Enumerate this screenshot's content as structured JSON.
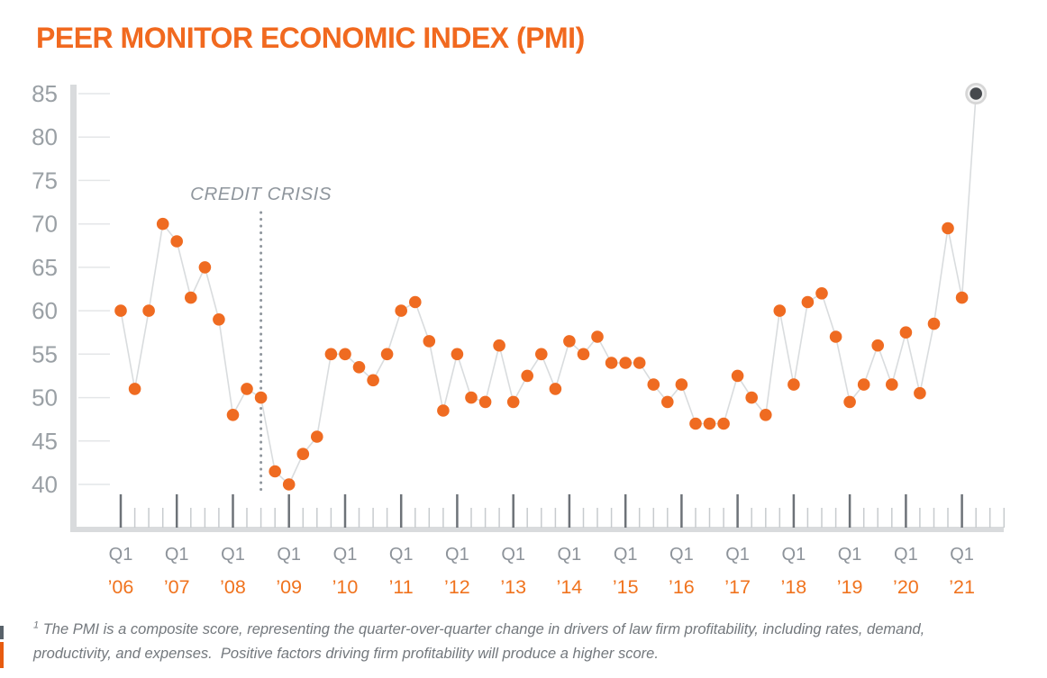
{
  "title": "PEER MONITOR ECONOMIC INDEX (PMI)",
  "footnote": {
    "sup": "1",
    "line1": " The PMI is a composite score, representing the quarter-over-quarter change in drivers of law firm profitability, including rates, demand,",
    "line2": "productivity, and expenses.  Positive factors driving firm profitability will produce a higher score."
  },
  "colors": {
    "accent_orange": "#F1691F",
    "year_label_orange": "#F0731E",
    "point_orange": "#EF6B21",
    "line_gray": "#D9DCDE",
    "grid_stub_gray": "#E4E6E8",
    "axis_band_gray": "#D9DBDD",
    "tick_major_gray": "#6D7278",
    "tick_minor_gray": "#C7CBCE",
    "axis_label_gray": "#9AA0A5",
    "q1_label_gray": "#8D939A",
    "annotation_gray": "#8F969D",
    "footnote_gray": "#73787D",
    "highlight_dot_dark": "#46494D",
    "highlight_halo_gray": "#D6D6D6",
    "highlight_halo_inner": "#F2F2F2"
  },
  "chart_data": {
    "type": "line",
    "title": "PEER MONITOR ECONOMIC INDEX (PMI)",
    "series_name": "PMI",
    "frequency": "quarterly",
    "x_tick_label": "Q1",
    "ylim": [
      40,
      85
    ],
    "y_ticks": [
      85,
      80,
      75,
      70,
      65,
      60,
      55,
      50,
      45,
      40
    ],
    "grid": "short-y-stubs-near-axis",
    "legend": "none",
    "highlight_last_point": true,
    "annotation": {
      "text": "CREDIT CRISIS",
      "x_index": 10,
      "at_quarter": "Q3 '08"
    },
    "years": [
      {
        "year": "’06",
        "values": [
          60,
          51,
          60,
          70
        ]
      },
      {
        "year": "’07",
        "values": [
          68,
          61.5,
          65,
          59
        ]
      },
      {
        "year": "’08",
        "values": [
          48,
          51,
          50,
          41.5
        ]
      },
      {
        "year": "’09",
        "values": [
          40,
          43.5,
          45.5,
          55
        ]
      },
      {
        "year": "’10",
        "values": [
          55,
          53.5,
          52,
          55
        ]
      },
      {
        "year": "’11",
        "values": [
          60,
          61,
          56.5,
          48.5
        ]
      },
      {
        "year": "’12",
        "values": [
          55,
          50,
          49.5,
          56
        ]
      },
      {
        "year": "’13",
        "values": [
          49.5,
          52.5,
          55,
          51
        ]
      },
      {
        "year": "’14",
        "values": [
          56.5,
          55,
          57,
          54
        ]
      },
      {
        "year": "’15",
        "values": [
          54,
          54,
          51.5,
          49.5
        ]
      },
      {
        "year": "’16",
        "values": [
          51.5,
          47,
          47,
          47
        ]
      },
      {
        "year": "’17",
        "values": [
          52.5,
          50,
          48,
          60
        ]
      },
      {
        "year": "’18",
        "values": [
          51.5,
          61,
          62,
          57
        ]
      },
      {
        "year": "’19",
        "values": [
          49.5,
          51.5,
          56,
          51.5
        ]
      },
      {
        "year": "’20",
        "values": [
          57.5,
          50.5,
          58.5,
          69.5
        ]
      },
      {
        "year": "’21",
        "values": [
          61.5,
          85
        ]
      }
    ]
  }
}
